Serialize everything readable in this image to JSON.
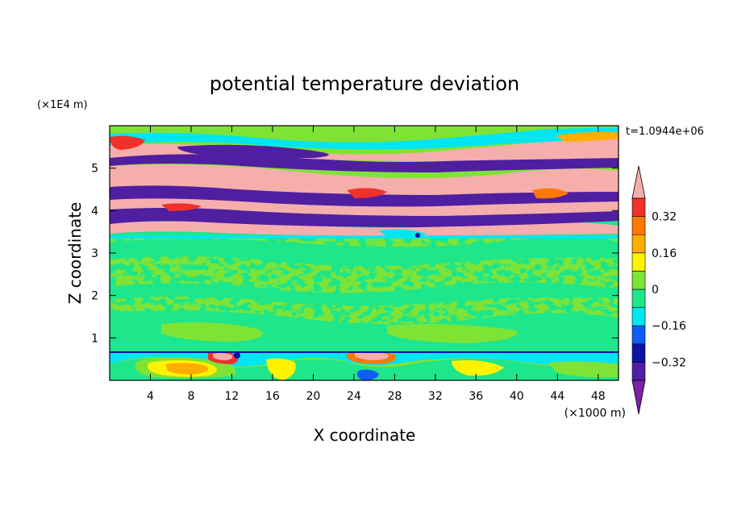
{
  "chart_data": {
    "type": "heatmap",
    "title": "potential temperature deviation",
    "xlabel": "X coordinate",
    "ylabel": "Z coordinate",
    "x_unit": "(×1000 m)",
    "y_unit": "(×1E4 m)",
    "time_label": "t=1.0944e+06",
    "xlim": [
      0,
      50
    ],
    "ylim": [
      0,
      6
    ],
    "x_ticks": [
      4,
      8,
      12,
      16,
      20,
      24,
      28,
      32,
      36,
      40,
      44,
      48
    ],
    "y_ticks": [
      1,
      2,
      3,
      4,
      5
    ],
    "colorbar": {
      "levels": [
        -0.4,
        -0.32,
        -0.24,
        -0.16,
        -0.08,
        0,
        0.08,
        0.16,
        0.24,
        0.32,
        0.4
      ],
      "tick_labels": [
        "0.32",
        "0.16",
        "0",
        "−0.16",
        "−0.32"
      ],
      "tick_values": [
        0.32,
        0.16,
        0,
        -0.16,
        -0.32
      ],
      "colors": [
        "#7a22a8",
        "#501ea0",
        "#0c13a6",
        "#0f5df5",
        "#00e6f0",
        "#1ee68a",
        "#7fe336",
        "#fef200",
        "#ffae00",
        "#ff7800",
        "#f0322a",
        "#f5aeac"
      ],
      "extend": "both"
    },
    "bands": [
      {
        "z_range": [
          0,
          0.7
        ],
        "description_values": "mostly 0 to 0.08 with patches up to 0.4 near x=8-12, 22-26"
      },
      {
        "z_range": [
          0.7,
          3.4
        ],
        "values": "-0.08 to 0.08"
      },
      {
        "z_range": [
          3.4,
          4.2
        ],
        "values": "alternating -0.4 and 0.4 layers"
      },
      {
        "z_range": [
          4.2,
          5.1
        ],
        "values": "alternating -0.4 and 0.4 layers"
      },
      {
        "z_range": [
          5.1,
          6.0
        ],
        "values": "alternating 0.4, -0.4, 0"
      }
    ]
  }
}
